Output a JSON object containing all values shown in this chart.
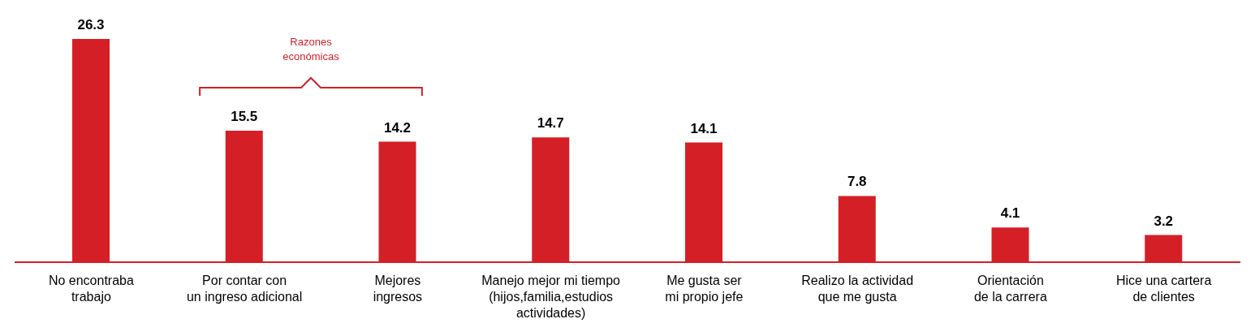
{
  "chart_data": {
    "type": "bar",
    "categories": [
      "No encontraba\ntrabajo",
      "Por contar con\nun ingreso adicional",
      "Mejores\ningresos",
      "Manejo mejor mi tiempo\n(hijos,familia,estudios\nactividades)",
      "Me gusta ser\nmi propio jefe",
      "Realizo la actividad\nque me gusta",
      "Orientación\nde la carrera",
      "Hice una cartera\nde clientes"
    ],
    "values": [
      26.3,
      15.5,
      14.2,
      14.7,
      14.1,
      7.8,
      4.1,
      3.2
    ],
    "color": "#d41f26",
    "data_labels": true,
    "annotations": [
      "Razones\neconómicas"
    ]
  }
}
